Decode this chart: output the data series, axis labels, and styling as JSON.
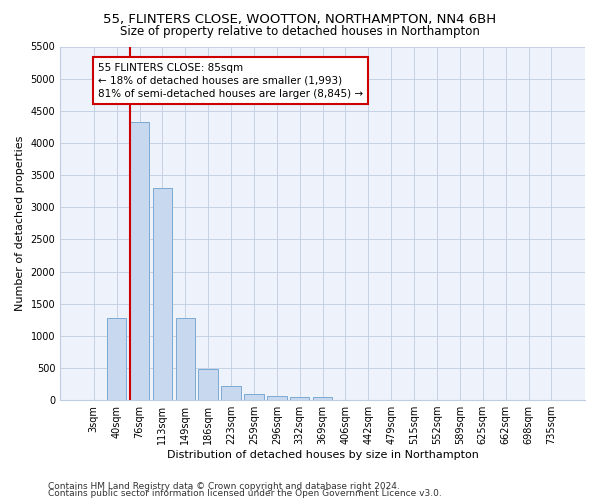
{
  "title1": "55, FLINTERS CLOSE, WOOTTON, NORTHAMPTON, NN4 6BH",
  "title2": "Size of property relative to detached houses in Northampton",
  "xlabel": "Distribution of detached houses by size in Northampton",
  "ylabel": "Number of detached properties",
  "bar_color": "#c8d8ee",
  "bar_edge_color": "#7baad4",
  "bar_categories": [
    "3sqm",
    "40sqm",
    "76sqm",
    "113sqm",
    "149sqm",
    "186sqm",
    "223sqm",
    "259sqm",
    "296sqm",
    "332sqm",
    "369sqm",
    "406sqm",
    "442sqm",
    "479sqm",
    "515sqm",
    "552sqm",
    "589sqm",
    "625sqm",
    "662sqm",
    "698sqm",
    "735sqm"
  ],
  "bar_values": [
    0,
    1270,
    4330,
    3300,
    1280,
    490,
    215,
    95,
    70,
    55,
    50,
    0,
    0,
    0,
    0,
    0,
    0,
    0,
    0,
    0,
    0
  ],
  "ylim": [
    0,
    5500
  ],
  "yticks": [
    0,
    500,
    1000,
    1500,
    2000,
    2500,
    3000,
    3500,
    4000,
    4500,
    5000,
    5500
  ],
  "vline_color": "#cc0000",
  "annotation_line1": "55 FLINTERS CLOSE: 85sqm",
  "annotation_line2": "← 18% of detached houses are smaller (1,993)",
  "annotation_line3": "81% of semi-detached houses are larger (8,845) →",
  "footer1": "Contains HM Land Registry data © Crown copyright and database right 2024.",
  "footer2": "Contains public sector information licensed under the Open Government Licence v3.0.",
  "bg_color": "#eef2fa",
  "grid_color": "#c0cce0",
  "title1_fontsize": 9.5,
  "title2_fontsize": 8.5,
  "xlabel_fontsize": 8,
  "ylabel_fontsize": 8,
  "tick_fontsize": 7,
  "annotation_fontsize": 7.5,
  "footer_fontsize": 6.5
}
